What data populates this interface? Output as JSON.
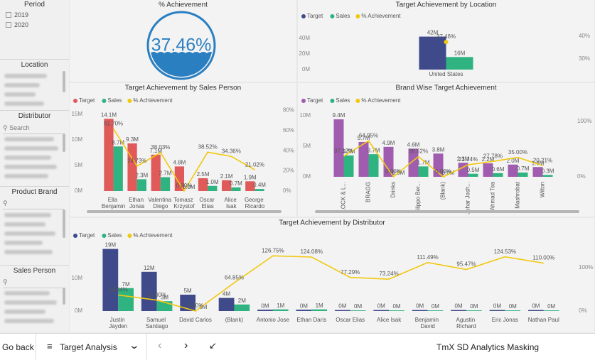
{
  "slicers": [
    {
      "title": "Period",
      "items": [
        "2019",
        "2020"
      ]
    },
    {
      "title": "Location"
    },
    {
      "title": "Distributor",
      "search": "Search"
    },
    {
      "title": "Product Brand"
    },
    {
      "title": "Sales Person"
    }
  ],
  "footer": {
    "back": "Go back",
    "page": "Target Analysis",
    "report": "TmX SD Analytics Masking"
  },
  "chart_data": [
    {
      "type": "gauge",
      "title": "% Achievement",
      "value": 37.46,
      "value_label": "37.46%",
      "color": "#2a7fc1"
    },
    {
      "type": "combo",
      "title": "Target Achievement by Location",
      "categories": [
        "United States"
      ],
      "series": [
        {
          "name": "Target",
          "color": "#3e4a89",
          "values": [
            42000000
          ],
          "value_labels": [
            "42M"
          ]
        },
        {
          "name": "Sales",
          "color": "#2fb380",
          "values": [
            16000000
          ],
          "value_labels": [
            "16M"
          ]
        },
        {
          "name": "% Achievement",
          "color": "#f2c80f",
          "axis": "y2",
          "values": [
            37.46
          ],
          "value_labels": [
            "37.46%"
          ]
        }
      ],
      "ylim": [
        0,
        57000000
      ],
      "yticks": [
        {
          "value": 0,
          "label": "0M"
        },
        {
          "value": 20000000,
          "label": "20M"
        },
        {
          "value": 40000000,
          "label": "40M"
        }
      ],
      "y2lim": [
        25.3,
        45
      ],
      "y2ticks": [
        {
          "value": 30,
          "label": "30%"
        },
        {
          "value": 40,
          "label": "40%"
        }
      ],
      "legend": "top-left",
      "grid": false
    },
    {
      "type": "combo",
      "title": "Target Achievement by Sales Person",
      "categories": [
        "Ella Benjamin",
        "Ethan Jonas",
        "Valentina Diego",
        "Tomasz Krzystof",
        "Oscar Elias",
        "Alice Isak",
        "George Ricardo"
      ],
      "series": [
        {
          "name": "Target",
          "color": "#e05a5a",
          "values": [
            14100000,
            9300000,
            7100000,
            4800000,
            2500000,
            2100000,
            1900000
          ],
          "value_labels": [
            "14.1M",
            "9.3M",
            "7.1M",
            "4.8M",
            "2.5M",
            "2.1M",
            "1.9M"
          ]
        },
        {
          "name": "Sales",
          "color": "#2fb380",
          "values": [
            8700000,
            2300000,
            2700000,
            0,
            1000000,
            700000,
            400000
          ],
          "value_labels": [
            "8.7M",
            "2.3M",
            "2.7M",
            "0.0M",
            "1.0M",
            "0.7M",
            "0.4M"
          ]
        },
        {
          "name": "% Achievement",
          "color": "#f2c80f",
          "axis": "y2",
          "values": [
            61.7,
            24.73,
            38.03,
            0,
            38.52,
            34.36,
            21.02
          ],
          "value_labels": [
            "61.70%",
            "24.73%",
            "38.03%",
            "0.00%",
            "38.52%",
            "34.36%",
            "21.02%"
          ]
        }
      ],
      "ylim": [
        0,
        16500000
      ],
      "yticks": [
        {
          "value": 0,
          "label": "0M"
        },
        {
          "value": 5000000,
          "label": "5M"
        },
        {
          "value": 10000000,
          "label": "10M"
        },
        {
          "value": 15000000,
          "label": "15M"
        }
      ],
      "y2lim": [
        0,
        83.8
      ],
      "y2ticks": [
        {
          "value": 0,
          "label": "0%"
        },
        {
          "value": 20,
          "label": "20%"
        },
        {
          "value": 40,
          "label": "40%"
        },
        {
          "value": 60,
          "label": "60%"
        },
        {
          "value": 80,
          "label": "80%"
        }
      ],
      "legend": "top-left",
      "grid": false
    },
    {
      "type": "combo",
      "title": "Brand Wise Target Achievement",
      "categories": [
        "LOCK & L...",
        "BRAGG",
        "Drinks",
        "Filippo Ber...",
        "(Blank)",
        "Johar Josh...",
        "Ahmad Tea",
        "Mashrobat",
        "Wilton"
      ],
      "series": [
        {
          "name": "Target",
          "color": "#a05db0",
          "values": [
            9400000,
            5700000,
            4900000,
            4600000,
            3800000,
            2300000,
            2200000,
            2000000,
            1600000
          ],
          "value_labels": [
            "9.4M",
            "5.7M",
            "4.9M",
            "4.6M",
            "3.8M",
            "2.3M",
            "2.2M",
            "2.0M",
            "1.6M"
          ]
        },
        {
          "name": "Sales",
          "color": "#2fb380",
          "values": [
            3500000,
            3700000,
            0,
            1700000,
            0,
            500000,
            600000,
            700000,
            300000
          ],
          "value_labels": [
            "3.5M",
            "3.7M",
            "0.0M",
            "1.7M",
            "0.0M",
            "0.5M",
            "0.6M",
            "0.7M",
            "0.3M"
          ]
        },
        {
          "name": "% Achievement",
          "color": "#f2c80f",
          "axis": "y2",
          "values": [
            37.12,
            64.95,
            0,
            36.52,
            0,
            21.74,
            27.78,
            35,
            20.21
          ],
          "value_labels": [
            "37.12%",
            "64.95%",
            "0.00%",
            "36.52%",
            "0.00%",
            "21.74%",
            "27.78%",
            "35.00%",
            "20.21%"
          ]
        }
      ],
      "ylim": [
        0,
        11500000
      ],
      "yticks": [
        {
          "value": 0,
          "label": "0M"
        },
        {
          "value": 5000000,
          "label": "5M"
        },
        {
          "value": 10000000,
          "label": "10M"
        }
      ],
      "y2lim": [
        0,
        127
      ],
      "y2ticks": [
        {
          "value": 0,
          "label": "0%"
        },
        {
          "value": 100,
          "label": "100%"
        }
      ],
      "legend": "top-left",
      "grid": false
    },
    {
      "type": "combo",
      "title": "Target Achievement by Distributor",
      "categories": [
        "Justin Jayden",
        "Samuel Santiago",
        "David Carlos",
        "(Blank)",
        "Antonio Jose",
        "Ethan Daris",
        "Oscar Elias",
        "Alice Isak",
        "Benjamin David",
        "Agustin Richard",
        "Eric Jonas",
        "Nathan Paul"
      ],
      "series": [
        {
          "name": "Target",
          "color": "#3e4a89",
          "values": [
            19000000,
            12000000,
            5000000,
            4000000,
            400000,
            400000,
            300000,
            300000,
            300000,
            300000,
            300000,
            300000
          ],
          "value_labels": [
            "19M",
            "12M",
            "5M",
            "4M",
            "0M",
            "0M",
            "0M",
            "0M",
            "0M",
            "0M",
            "0M",
            "0M"
          ]
        },
        {
          "name": "Sales",
          "color": "#2fb380",
          "values": [
            7000000,
            3000000,
            0,
            2000000,
            500000,
            500000,
            200000,
            200000,
            200000,
            200000,
            200000,
            200000
          ],
          "value_labels": [
            "7M",
            "3M",
            "0M",
            "2M",
            "1M",
            "1M",
            "0M",
            "0M",
            "0M",
            "0M",
            "0M",
            "0M"
          ]
        },
        {
          "name": "% Achievement",
          "color": "#f2c80f",
          "axis": "y2",
          "values": [
            36.84,
            25,
            0,
            64.85,
            126.75,
            124.08,
            77.29,
            73.24,
            111.49,
            95.47,
            124.53,
            110
          ],
          "value_labels": [
            "36.84%",
            "25.00%",
            "0.00%",
            "64.85%",
            "126.75%",
            "124.08%",
            "77.29%",
            "73.24%",
            "111.49%",
            "95.47%",
            "124.53%",
            "110.00%"
          ]
        }
      ],
      "ylim": [
        0,
        21300000
      ],
      "yticks": [
        {
          "value": 0,
          "label": "0M"
        },
        {
          "value": 10000000,
          "label": "10M"
        }
      ],
      "y2lim": [
        0,
        160
      ],
      "y2ticks": [
        {
          "value": 0,
          "label": "0%"
        },
        {
          "value": 100,
          "label": "100%"
        }
      ],
      "legend": "top-left",
      "grid": false
    }
  ]
}
